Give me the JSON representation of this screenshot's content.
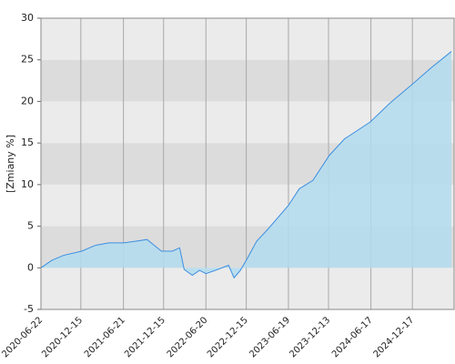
{
  "chart_data": {
    "type": "area",
    "y_label": "[Zmiany %]",
    "x": [
      "2020-06-22",
      "2020-08-09",
      "2020-09-30",
      "2020-12-19",
      "2021-02-17",
      "2021-04-18",
      "2021-06-21",
      "2021-08-16",
      "2021-10-03",
      "2021-11-04",
      "2021-12-06",
      "2022-01-23",
      "2022-02-24",
      "2022-03-16",
      "2022-04-21",
      "2022-05-23",
      "2022-06-20",
      "2022-08-11",
      "2022-09-28",
      "2022-10-22",
      "2022-11-19",
      "2022-12-17",
      "2023-01-30",
      "2023-03-19",
      "2023-06-19",
      "2023-08-06",
      "2023-10-05",
      "2023-12-16",
      "2024-02-22",
      "2024-06-13",
      "2024-09-09",
      "2024-12-14",
      "2025-03-08",
      "2025-06-07"
    ],
    "values": [
      0,
      0.9,
      1.5,
      2.0,
      2.7,
      3.0,
      3.0,
      3.2,
      3.4,
      2.7,
      2.0,
      2.0,
      2.4,
      -0.2,
      -0.9,
      -0.3,
      -0.7,
      -0.2,
      0.3,
      -1.2,
      -0.3,
      1.0,
      3.2,
      4.6,
      7.5,
      9.5,
      10.5,
      13.5,
      15.5,
      17.5,
      19.8,
      22.0,
      24.0,
      26.0
    ],
    "line_color": "#3d8fe0",
    "fill_color": "#b3dcee",
    "band_colors": [
      "#ebebeb",
      "#dcdcdc"
    ],
    "grid_color": "#a8a8a8",
    "xlim": [
      "2020-06-22",
      "2025-06-19"
    ],
    "xticks": [
      "2020-06-22",
      "2020-12-15",
      "2021-06-21",
      "2021-12-15",
      "2022-06-20",
      "2022-12-15",
      "2023-06-19",
      "2023-12-13",
      "2024-06-17",
      "2024-12-17"
    ],
    "ylim": [
      -5,
      30
    ],
    "yticks": [
      -5,
      0,
      5,
      10,
      15,
      20,
      25,
      30
    ],
    "grid": true
  }
}
